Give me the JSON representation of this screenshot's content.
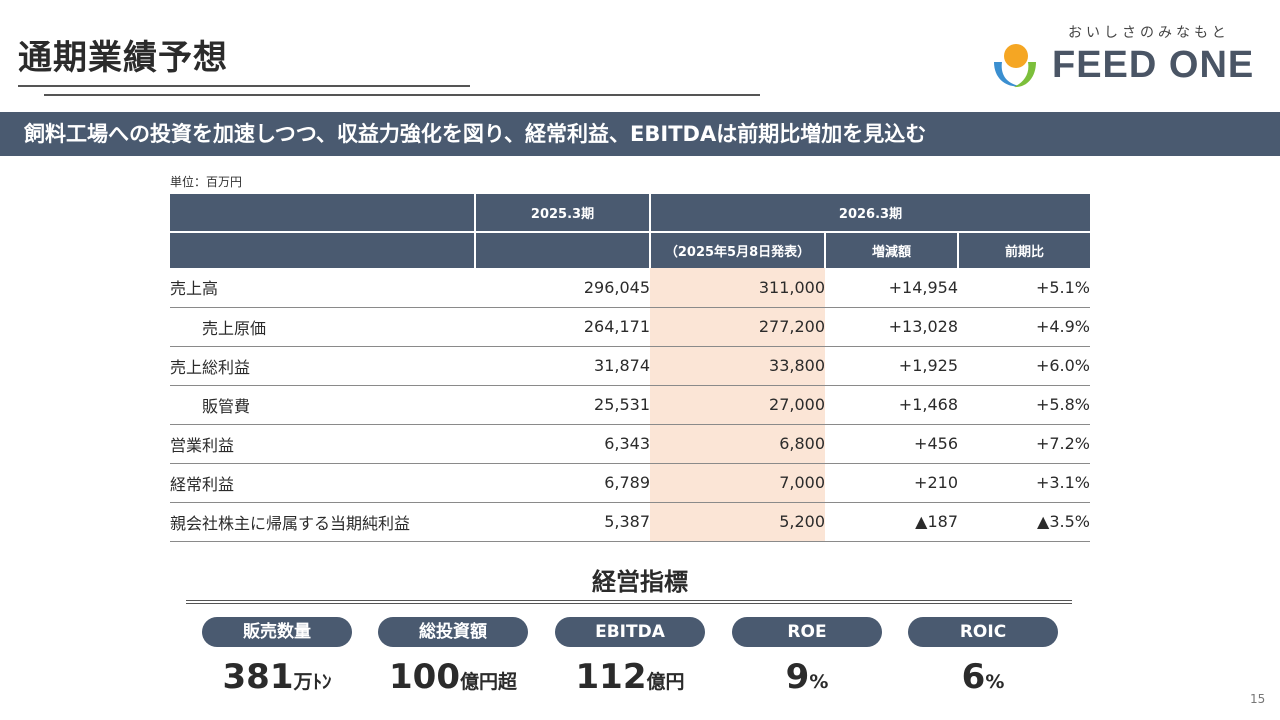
{
  "header": {
    "title": "通期業績予想"
  },
  "logo": {
    "tagline": "おいしさのみなもと",
    "name": "FEED ONE"
  },
  "banner": {
    "text": "飼料工場への投資を加速しつつ、収益力強化を図り、経常利益、EBITDAは前期比増加を見込む"
  },
  "unit_note": "単位：百万円",
  "table": {
    "header_fy2025": "2025.3期",
    "header_fy2026": "2026.3期",
    "subheader_forecast": "（2025年5月8日発表）",
    "subheader_change": "増減額",
    "subheader_yoy": "前期比",
    "rows": [
      {
        "label": "売上高",
        "fy2025": "296,045",
        "fy2026": "311,000",
        "change": "+14,954",
        "yoy": "+5.1%"
      },
      {
        "label": "売上原価",
        "fy2025": "264,171",
        "fy2026": "277,200",
        "change": "+13,028",
        "yoy": "+4.9%"
      },
      {
        "label": "売上総利益",
        "fy2025": "31,874",
        "fy2026": "33,800",
        "change": "+1,925",
        "yoy": "+6.0%"
      },
      {
        "label": "販管費",
        "fy2025": "25,531",
        "fy2026": "27,000",
        "change": "+1,468",
        "yoy": "+5.8%"
      },
      {
        "label": "営業利益",
        "fy2025": "6,343",
        "fy2026": "6,800",
        "change": "+456",
        "yoy": "+7.2%"
      },
      {
        "label": "経常利益",
        "fy2025": "6,789",
        "fy2026": "7,000",
        "change": "+210",
        "yoy": "+3.1%"
      },
      {
        "label": "親会社株主に帰属する当期純利益",
        "fy2025": "5,387",
        "fy2026": "5,200",
        "change": "▲187",
        "yoy": "▲3.5%"
      }
    ]
  },
  "kpi": {
    "title": "経営指標",
    "items": [
      {
        "label": "販売数量",
        "value": "381",
        "unit": "万ﾄﾝ"
      },
      {
        "label": "総投資額",
        "value": "100",
        "unit": "億円超"
      },
      {
        "label": "EBITDA",
        "value": "112",
        "unit": "億円"
      },
      {
        "label": "ROE",
        "value": "9",
        "unit": "%"
      },
      {
        "label": "ROIC",
        "value": "6",
        "unit": "%"
      }
    ]
  },
  "page_number": "15",
  "colors": {
    "navy": "#4a5a70",
    "highlight": "#fbe5d6",
    "logo_orange": "#f5a623",
    "logo_blue": "#3b8fd0",
    "logo_green": "#7cbf3b"
  }
}
